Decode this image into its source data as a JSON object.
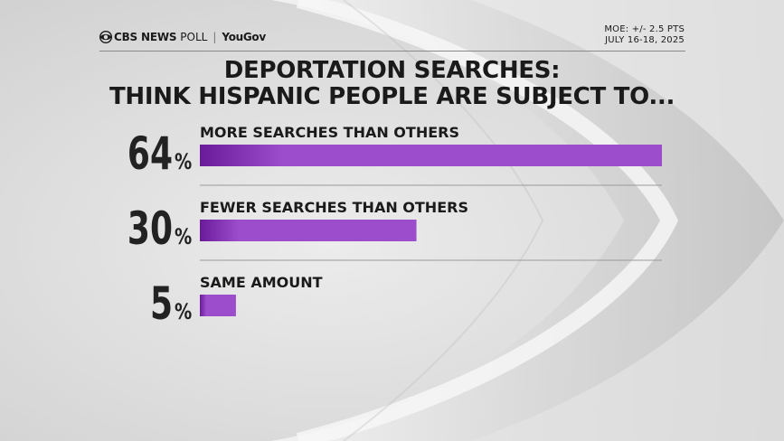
{
  "header": {
    "brand": "CBS NEWS",
    "poll": "POLL",
    "partner": "YouGov",
    "moe": "MOE: +/- 2.5 PTS",
    "dates": "JULY 16-18, 2025"
  },
  "colors": {
    "bar_dark": "#6a1b9a",
    "bar_light": "#9c4dcc",
    "text": "#1a1a1a"
  },
  "chart_data": {
    "type": "bar",
    "title": "DEPORTATION SEARCHES:",
    "subtitle": "THINK HISPANIC PEOPLE ARE SUBJECT TO...",
    "categories": [
      "MORE SEARCHES THAN OTHERS",
      "FEWER SEARCHES THAN OTHERS",
      "SAME AMOUNT"
    ],
    "values": [
      64,
      30,
      5
    ],
    "value_labels": [
      "64",
      "30",
      "5"
    ],
    "unit": "%",
    "xlim": [
      0,
      64
    ],
    "orientation": "horizontal",
    "grid": false,
    "legend": "none"
  }
}
